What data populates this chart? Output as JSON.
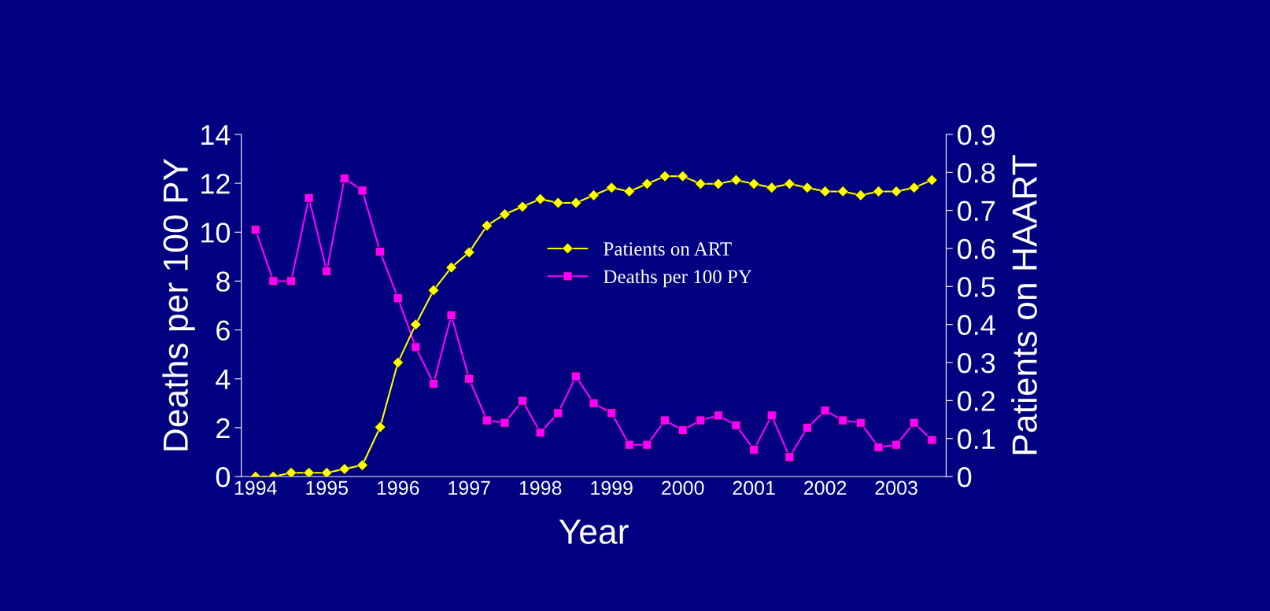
{
  "chart_data": {
    "type": "line",
    "xlabel": "Year",
    "ylabel": "Deaths per 100 PY",
    "y2label": "Patients on HAART",
    "categories": [
      "1994",
      null,
      null,
      null,
      "1995",
      null,
      null,
      null,
      "1996",
      null,
      null,
      null,
      "1997",
      null,
      null,
      null,
      "1998",
      null,
      null,
      null,
      "1999",
      null,
      null,
      null,
      "2000",
      null,
      null,
      null,
      "2001",
      null,
      null,
      null,
      "2002",
      null,
      null,
      null,
      "2003",
      null,
      null
    ],
    "series": [
      {
        "name": "Patients on ART",
        "color": "#ffff00",
        "marker": "diamond",
        "axis": "y2",
        "values": [
          0,
          0,
          0.01,
          0.01,
          0.01,
          0.02,
          0.03,
          0.13,
          0.3,
          0.4,
          0.49,
          0.55,
          0.59,
          0.66,
          0.69,
          0.71,
          0.73,
          0.72,
          0.72,
          0.74,
          0.76,
          0.75,
          0.77,
          0.79,
          0.79,
          0.77,
          0.77,
          0.78,
          0.77,
          0.76,
          0.77,
          0.76,
          0.75,
          0.75,
          0.74,
          0.75,
          0.75,
          0.76,
          0.78
        ]
      },
      {
        "name": "Deaths per 100 PY",
        "color": "#ff00ff",
        "marker": "square",
        "values": [
          10.1,
          8.0,
          8.0,
          11.4,
          8.4,
          12.2,
          11.7,
          9.2,
          7.3,
          5.3,
          3.8,
          6.6,
          4.0,
          2.3,
          2.2,
          3.1,
          1.8,
          2.6,
          4.1,
          3.0,
          2.6,
          1.3,
          1.3,
          2.3,
          1.9,
          2.3,
          2.5,
          2.1,
          1.1,
          2.5,
          0.8,
          2.0,
          2.7,
          2.3,
          2.2,
          1.2,
          1.3,
          2.2,
          1.5
        ]
      }
    ],
    "ylim": [
      0,
      14
    ],
    "yticks": [
      0,
      2,
      4,
      6,
      8,
      10,
      12,
      14
    ],
    "y2lim": [
      0,
      0.9
    ],
    "y2ticks": [
      0,
      0.1,
      0.2,
      0.3,
      0.4,
      0.5,
      0.6,
      0.7,
      0.8,
      0.9
    ],
    "grid": false,
    "legend": "center"
  }
}
